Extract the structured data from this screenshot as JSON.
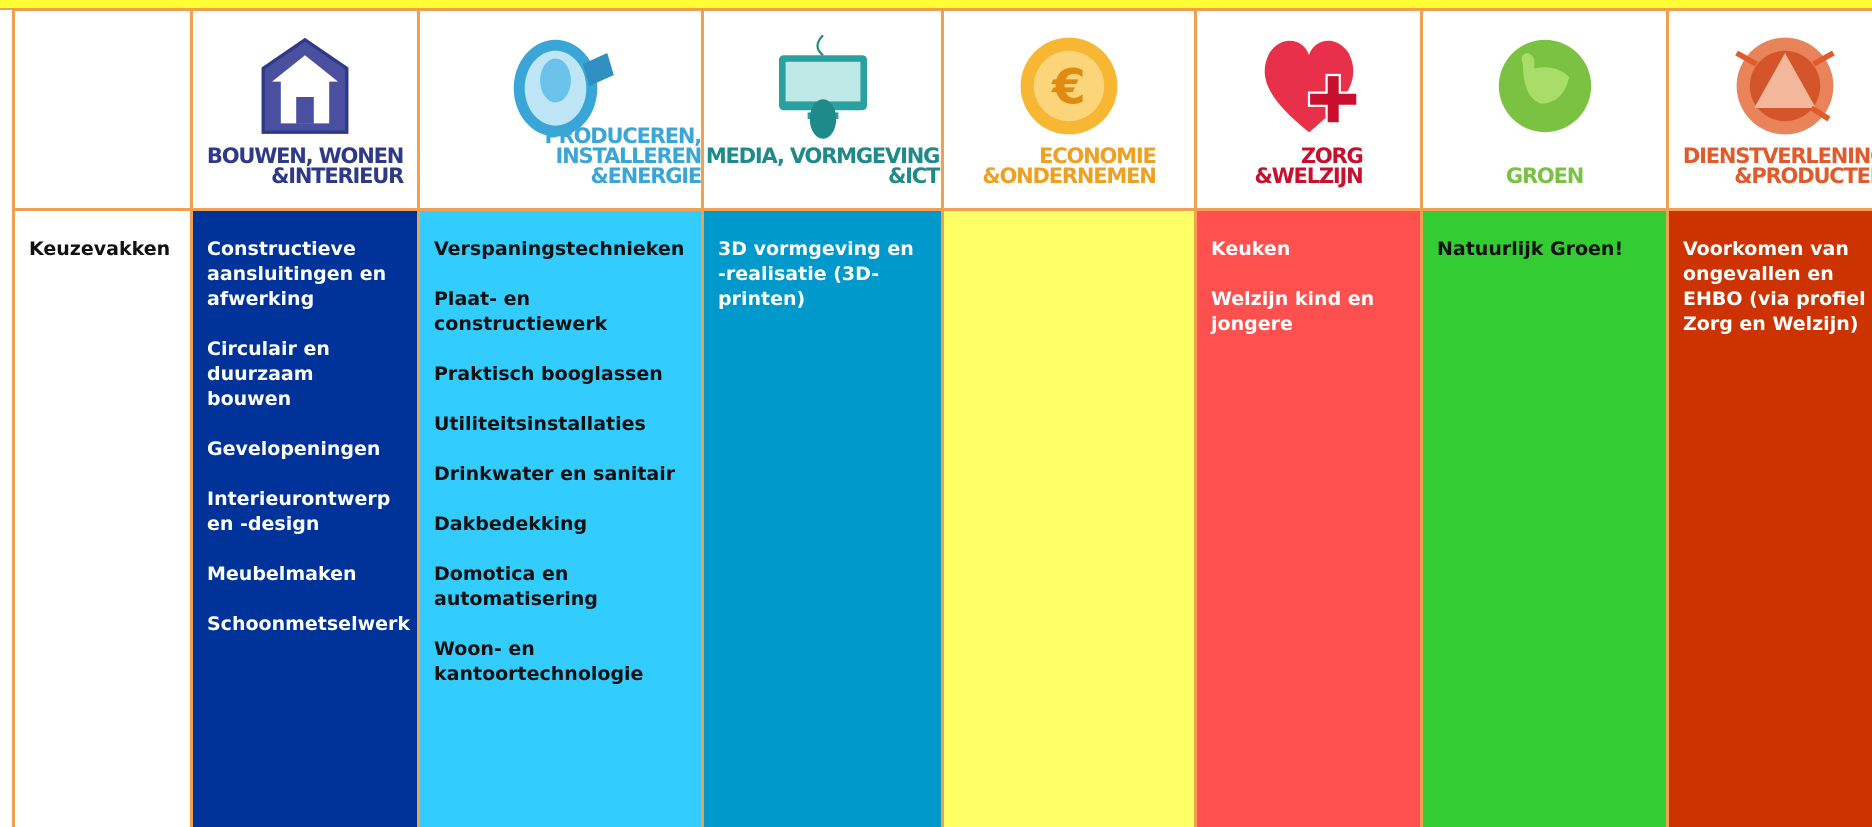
{
  "header": {
    "row_label": "Keuzevakken"
  },
  "columns": [
    {
      "title_lines": [
        "BOUWEN, WONEN",
        "&INTERIEUR"
      ],
      "items": [
        "Constructieve aansluitingen en afwerking",
        "Circulair en duurzaam bouwen",
        "Gevelopeningen",
        "Interieurontwerp en -design",
        "Meubelmaken",
        "Schoonmetselwerk"
      ]
    },
    {
      "title_lines": [
        "PRODUCEREN, INSTALLEREN",
        "&ENERGIE"
      ],
      "items": [
        "Verspaningstechnieken",
        "Plaat- en constructiewerk",
        "Praktisch booglassen",
        "Utiliteitsinstallaties",
        "Drinkwater en sanitair",
        "Dakbedekking",
        "Domotica en automatisering",
        "Woon- en kantoortechnologie"
      ]
    },
    {
      "title_lines": [
        "MEDIA, VORMGEVING",
        "&ICT"
      ],
      "items": [
        "3D vormgeving en -realisatie (3D-printen)"
      ]
    },
    {
      "title_lines": [
        "ECONOMIE",
        "&ONDERNEMEN"
      ],
      "items": []
    },
    {
      "title_lines": [
        "ZORG",
        "&WELZIJN"
      ],
      "items": [
        "Keuken",
        "Welzijn kind en jongere"
      ]
    },
    {
      "title_lines": [
        "GROEN"
      ],
      "items": [
        "Natuurlijk Groen!"
      ]
    },
    {
      "title_lines": [
        "DIENSTVERLENING",
        "&PRODUCTEN"
      ],
      "items": [
        "Voorkomen van ongevallen en EHBO (via profiel Zorg en Welzijn)"
      ]
    }
  ]
}
